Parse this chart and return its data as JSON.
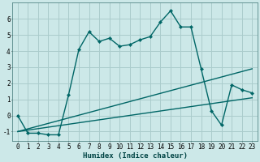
{
  "xlabel": "Humidex (Indice chaleur)",
  "bg_color": "#cce8e8",
  "grid_color": "#aacccc",
  "line_color": "#006666",
  "xlim": [
    -0.5,
    23.5
  ],
  "ylim": [
    -1.6,
    7.0
  ],
  "yticks": [
    -1,
    0,
    1,
    2,
    3,
    4,
    5,
    6
  ],
  "xticks": [
    0,
    1,
    2,
    3,
    4,
    5,
    6,
    7,
    8,
    9,
    10,
    11,
    12,
    13,
    14,
    15,
    16,
    17,
    18,
    19,
    20,
    21,
    22,
    23
  ],
  "series1_x": [
    0,
    1,
    2,
    3,
    4,
    5,
    6,
    7,
    8,
    9,
    10,
    11,
    12,
    13,
    14,
    15,
    16,
    17,
    18,
    19,
    20,
    21,
    22,
    23
  ],
  "series1_y": [
    0.0,
    -1.1,
    -1.1,
    -1.2,
    -1.2,
    1.3,
    4.1,
    5.2,
    4.6,
    4.8,
    4.3,
    4.4,
    4.7,
    4.9,
    5.8,
    6.5,
    5.5,
    5.5,
    2.9,
    0.3,
    -0.6,
    1.9,
    1.6,
    1.4
  ],
  "series2_x": [
    0,
    23
  ],
  "series2_y": [
    -1.0,
    2.9
  ],
  "series3_x": [
    0,
    23
  ],
  "series3_y": [
    -1.0,
    1.1
  ]
}
